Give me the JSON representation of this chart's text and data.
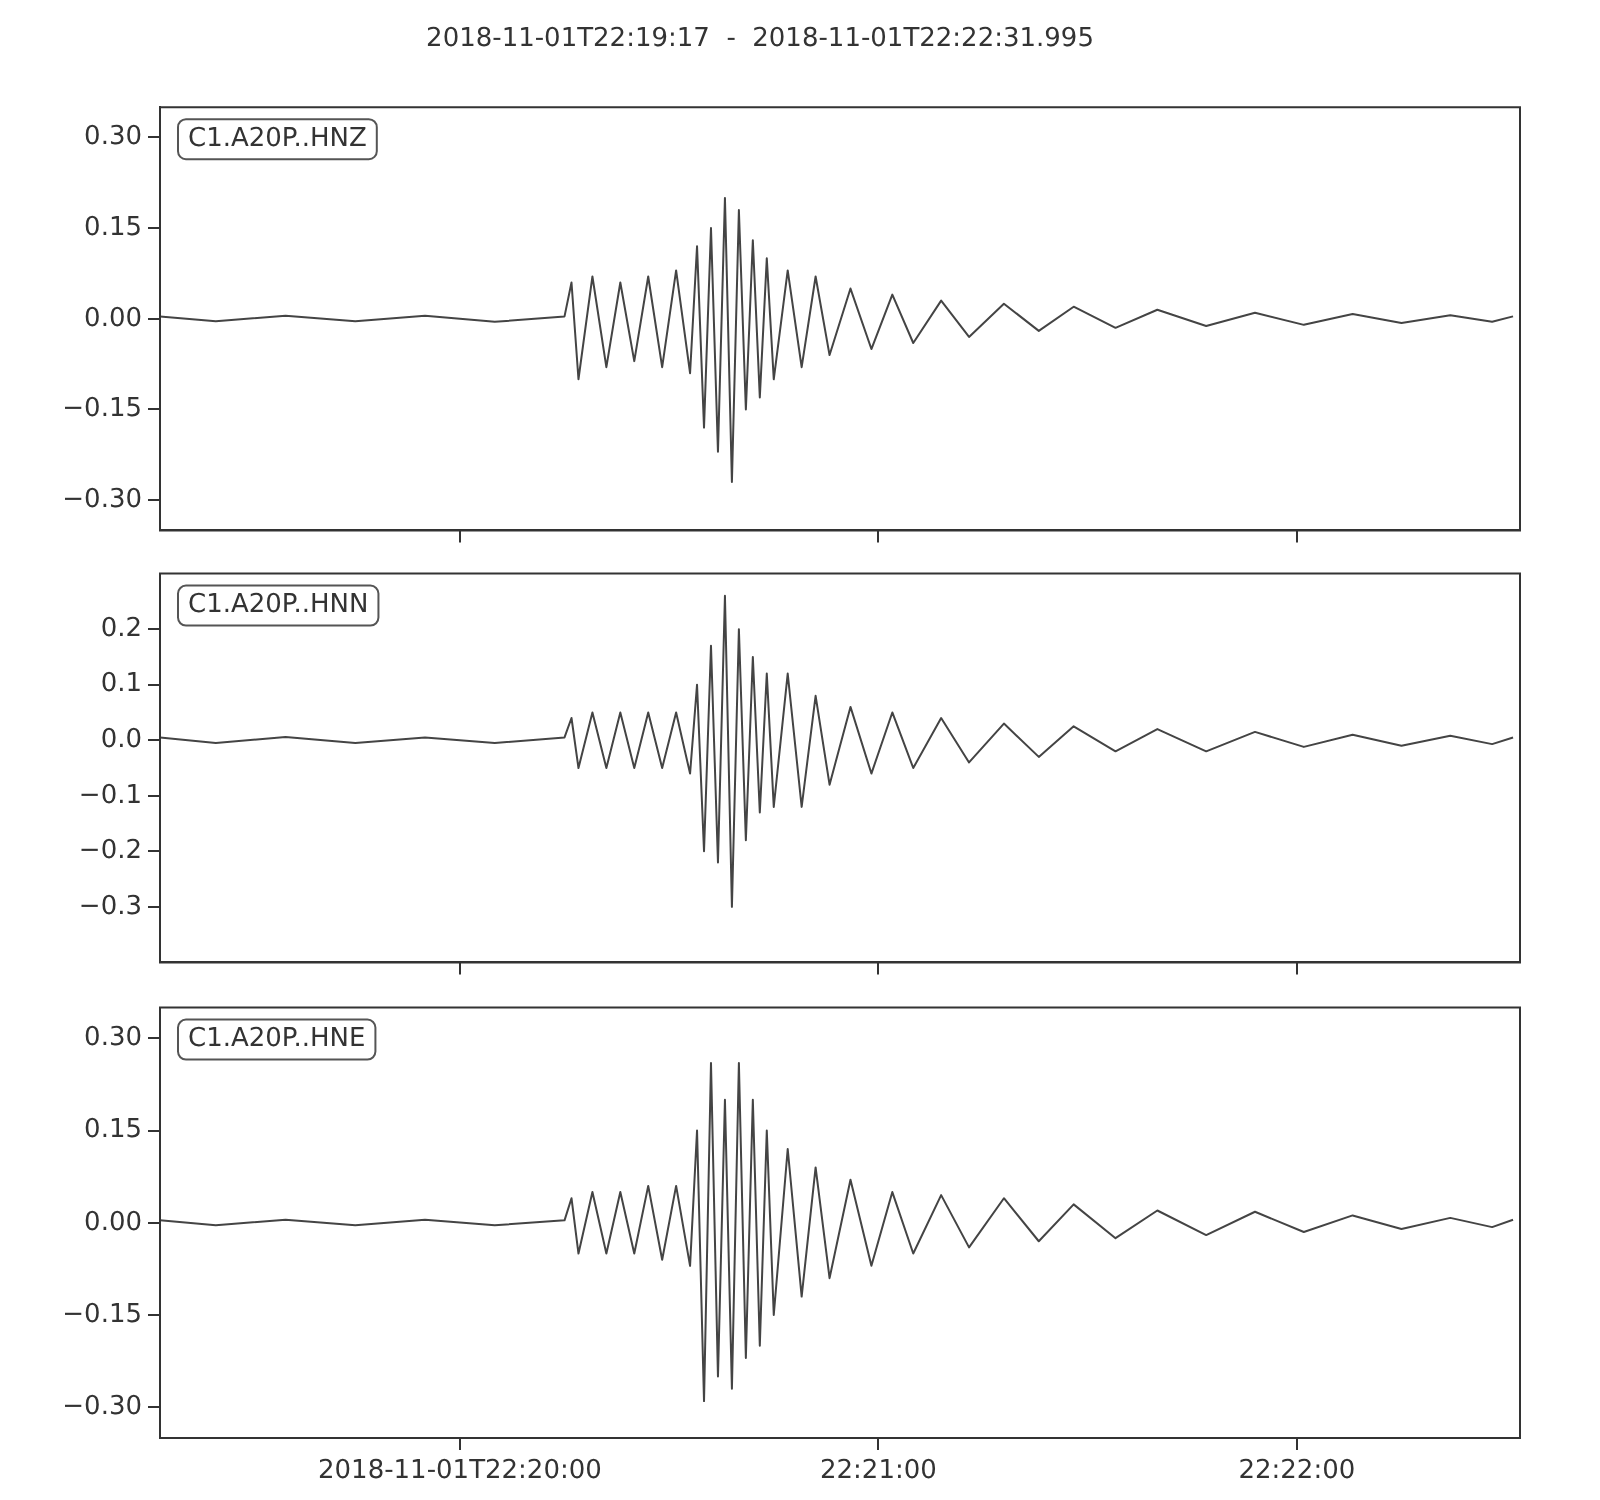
{
  "chart_data": [
    {
      "type": "line",
      "title": "2018-11-01T22:19:17  -  2018-11-01T22:22:31.995",
      "annotations": [
        "C1.A20P..HNZ"
      ],
      "xlim": [
        "2018-11-01T22:19:17",
        "2018-11-01T22:22:31.995"
      ],
      "xticks": [
        {
          "value": "2018-11-01T22:20:00",
          "label": null
        },
        {
          "value": "2018-11-01T22:21:00",
          "label": null
        },
        {
          "value": "2018-11-01T22:22:00",
          "label": null
        }
      ],
      "ylim": [
        -0.35,
        0.35
      ],
      "yticks": [
        {
          "value": -0.3,
          "label": "−0.30"
        },
        {
          "value": -0.15,
          "label": "−0.15"
        },
        {
          "value": 0,
          "label": "0.00"
        },
        {
          "value": 0.15,
          "label": "0.15"
        },
        {
          "value": 0.3,
          "label": "0.30"
        }
      ],
      "tick_labels": "y",
      "grid": false,
      "legend": false,
      "marker": "none",
      "line_style": "solid",
      "series": [
        {
          "color": "#444444",
          "x": [
            "2018-11-01T22:19:17",
            "2018-11-01T22:19:25",
            "2018-11-01T22:19:35",
            "2018-11-01T22:19:45",
            "2018-11-01T22:19:55",
            "2018-11-01T22:20:05",
            "2018-11-01T22:20:15",
            "2018-11-01T22:20:16",
            "2018-11-01T22:20:17",
            "2018-11-01T22:20:19",
            "2018-11-01T22:20:21",
            "2018-11-01T22:20:23",
            "2018-11-01T22:20:25",
            "2018-11-01T22:20:27",
            "2018-11-01T22:20:29",
            "2018-11-01T22:20:31",
            "2018-11-01T22:20:33",
            "2018-11-01T22:20:34",
            "2018-11-01T22:20:35",
            "2018-11-01T22:20:36",
            "2018-11-01T22:20:37",
            "2018-11-01T22:20:38",
            "2018-11-01T22:20:39",
            "2018-11-01T22:20:40",
            "2018-11-01T22:20:41",
            "2018-11-01T22:20:42",
            "2018-11-01T22:20:43",
            "2018-11-01T22:20:44",
            "2018-11-01T22:20:45",
            "2018-11-01T22:20:47",
            "2018-11-01T22:20:49",
            "2018-11-01T22:20:51",
            "2018-11-01T22:20:53",
            "2018-11-01T22:20:56",
            "2018-11-01T22:20:59",
            "2018-11-01T22:21:02",
            "2018-11-01T22:21:05",
            "2018-11-01T22:21:09",
            "2018-11-01T22:21:13",
            "2018-11-01T22:21:18",
            "2018-11-01T22:21:23",
            "2018-11-01T22:21:28",
            "2018-11-01T22:21:34",
            "2018-11-01T22:21:40",
            "2018-11-01T22:21:47",
            "2018-11-01T22:21:54",
            "2018-11-01T22:22:01",
            "2018-11-01T22:22:08",
            "2018-11-01T22:22:15",
            "2018-11-01T22:22:22",
            "2018-11-01T22:22:28",
            "2018-11-01T22:22:31"
          ],
          "values": [
            0.004,
            -0.004,
            0.005,
            -0.004,
            0.005,
            -0.005,
            0.004,
            0.06,
            -0.1,
            0.07,
            -0.08,
            0.06,
            -0.07,
            0.07,
            -0.08,
            0.08,
            -0.09,
            0.12,
            -0.18,
            0.15,
            -0.22,
            0.2,
            -0.27,
            0.18,
            -0.15,
            0.13,
            -0.13,
            0.1,
            -0.1,
            0.08,
            -0.08,
            0.07,
            -0.06,
            0.05,
            -0.05,
            0.04,
            -0.04,
            0.03,
            -0.03,
            0.025,
            -0.02,
            0.02,
            -0.015,
            0.015,
            -0.012,
            0.01,
            -0.01,
            0.008,
            -0.007,
            0.006,
            -0.005,
            0.004
          ]
        }
      ]
    },
    {
      "type": "line",
      "annotations": [
        "C1.A20P..HNN"
      ],
      "xlim": [
        "2018-11-01T22:19:17",
        "2018-11-01T22:22:31.995"
      ],
      "xticks": [
        {
          "value": "2018-11-01T22:20:00",
          "label": null
        },
        {
          "value": "2018-11-01T22:21:00",
          "label": null
        },
        {
          "value": "2018-11-01T22:22:00",
          "label": null
        }
      ],
      "ylim": [
        -0.4,
        0.3
      ],
      "yticks": [
        {
          "value": -0.3,
          "label": "−0.3"
        },
        {
          "value": -0.2,
          "label": "−0.2"
        },
        {
          "value": -0.1,
          "label": "−0.1"
        },
        {
          "value": 0,
          "label": "0.0"
        },
        {
          "value": 0.1,
          "label": "0.1"
        },
        {
          "value": 0.2,
          "label": "0.2"
        }
      ],
      "tick_labels": "y",
      "grid": false,
      "legend": false,
      "marker": "none",
      "line_style": "solid",
      "series": [
        {
          "color": "#444444",
          "x": [
            "2018-11-01T22:19:17",
            "2018-11-01T22:19:25",
            "2018-11-01T22:19:35",
            "2018-11-01T22:19:45",
            "2018-11-01T22:19:55",
            "2018-11-01T22:20:05",
            "2018-11-01T22:20:15",
            "2018-11-01T22:20:16",
            "2018-11-01T22:20:17",
            "2018-11-01T22:20:19",
            "2018-11-01T22:20:21",
            "2018-11-01T22:20:23",
            "2018-11-01T22:20:25",
            "2018-11-01T22:20:27",
            "2018-11-01T22:20:29",
            "2018-11-01T22:20:31",
            "2018-11-01T22:20:33",
            "2018-11-01T22:20:34",
            "2018-11-01T22:20:35",
            "2018-11-01T22:20:36",
            "2018-11-01T22:20:37",
            "2018-11-01T22:20:38",
            "2018-11-01T22:20:39",
            "2018-11-01T22:20:40",
            "2018-11-01T22:20:41",
            "2018-11-01T22:20:42",
            "2018-11-01T22:20:43",
            "2018-11-01T22:20:44",
            "2018-11-01T22:20:45",
            "2018-11-01T22:20:47",
            "2018-11-01T22:20:49",
            "2018-11-01T22:20:51",
            "2018-11-01T22:20:53",
            "2018-11-01T22:20:56",
            "2018-11-01T22:20:59",
            "2018-11-01T22:21:02",
            "2018-11-01T22:21:05",
            "2018-11-01T22:21:09",
            "2018-11-01T22:21:13",
            "2018-11-01T22:21:18",
            "2018-11-01T22:21:23",
            "2018-11-01T22:21:28",
            "2018-11-01T22:21:34",
            "2018-11-01T22:21:40",
            "2018-11-01T22:21:47",
            "2018-11-01T22:21:54",
            "2018-11-01T22:22:01",
            "2018-11-01T22:22:08",
            "2018-11-01T22:22:15",
            "2018-11-01T22:22:22",
            "2018-11-01T22:22:28",
            "2018-11-01T22:22:31"
          ],
          "values": [
            0.005,
            -0.005,
            0.006,
            -0.005,
            0.005,
            -0.005,
            0.005,
            0.04,
            -0.05,
            0.05,
            -0.05,
            0.05,
            -0.05,
            0.05,
            -0.05,
            0.05,
            -0.06,
            0.1,
            -0.2,
            0.17,
            -0.22,
            0.26,
            -0.3,
            0.2,
            -0.18,
            0.15,
            -0.13,
            0.12,
            -0.12,
            0.12,
            -0.12,
            0.08,
            -0.08,
            0.06,
            -0.06,
            0.05,
            -0.05,
            0.04,
            -0.04,
            0.03,
            -0.03,
            0.025,
            -0.02,
            0.02,
            -0.02,
            0.015,
            -0.012,
            0.01,
            -0.01,
            0.008,
            -0.007,
            0.005
          ]
        }
      ]
    },
    {
      "type": "line",
      "annotations": [
        "C1.A20P..HNE"
      ],
      "xlim": [
        "2018-11-01T22:19:17",
        "2018-11-01T22:22:31.995"
      ],
      "xticks": [
        {
          "value": "2018-11-01T22:20:00",
          "label": "2018-11-01T22:20:00"
        },
        {
          "value": "2018-11-01T22:21:00",
          "label": "22:21:00"
        },
        {
          "value": "2018-11-01T22:22:00",
          "label": "22:22:00"
        }
      ],
      "ylim": [
        -0.35,
        0.35
      ],
      "yticks": [
        {
          "value": -0.3,
          "label": "−0.30"
        },
        {
          "value": -0.15,
          "label": "−0.15"
        },
        {
          "value": 0,
          "label": "0.00"
        },
        {
          "value": 0.15,
          "label": "0.15"
        },
        {
          "value": 0.3,
          "label": "0.30"
        }
      ],
      "grid": false,
      "legend": false,
      "marker": "none",
      "line_style": "solid",
      "series": [
        {
          "color": "#444444",
          "x": [
            "2018-11-01T22:19:17",
            "2018-11-01T22:19:25",
            "2018-11-01T22:19:35",
            "2018-11-01T22:19:45",
            "2018-11-01T22:19:55",
            "2018-11-01T22:20:05",
            "2018-11-01T22:20:15",
            "2018-11-01T22:20:16",
            "2018-11-01T22:20:17",
            "2018-11-01T22:20:19",
            "2018-11-01T22:20:21",
            "2018-11-01T22:20:23",
            "2018-11-01T22:20:25",
            "2018-11-01T22:20:27",
            "2018-11-01T22:20:29",
            "2018-11-01T22:20:31",
            "2018-11-01T22:20:33",
            "2018-11-01T22:20:34",
            "2018-11-01T22:20:35",
            "2018-11-01T22:20:36",
            "2018-11-01T22:20:37",
            "2018-11-01T22:20:38",
            "2018-11-01T22:20:39",
            "2018-11-01T22:20:40",
            "2018-11-01T22:20:41",
            "2018-11-01T22:20:42",
            "2018-11-01T22:20:43",
            "2018-11-01T22:20:44",
            "2018-11-01T22:20:45",
            "2018-11-01T22:20:47",
            "2018-11-01T22:20:49",
            "2018-11-01T22:20:51",
            "2018-11-01T22:20:53",
            "2018-11-01T22:20:56",
            "2018-11-01T22:20:59",
            "2018-11-01T22:21:02",
            "2018-11-01T22:21:05",
            "2018-11-01T22:21:09",
            "2018-11-01T22:21:13",
            "2018-11-01T22:21:18",
            "2018-11-01T22:21:23",
            "2018-11-01T22:21:28",
            "2018-11-01T22:21:34",
            "2018-11-01T22:21:40",
            "2018-11-01T22:21:47",
            "2018-11-01T22:21:54",
            "2018-11-01T22:22:01",
            "2018-11-01T22:22:08",
            "2018-11-01T22:22:15",
            "2018-11-01T22:22:22",
            "2018-11-01T22:22:28",
            "2018-11-01T22:22:31"
          ],
          "values": [
            0.004,
            -0.004,
            0.005,
            -0.004,
            0.005,
            -0.004,
            0.004,
            0.04,
            -0.05,
            0.05,
            -0.05,
            0.05,
            -0.05,
            0.06,
            -0.06,
            0.06,
            -0.07,
            0.15,
            -0.29,
            0.26,
            -0.25,
            0.2,
            -0.27,
            0.26,
            -0.22,
            0.2,
            -0.2,
            0.15,
            -0.15,
            0.12,
            -0.12,
            0.09,
            -0.09,
            0.07,
            -0.07,
            0.05,
            -0.05,
            0.045,
            -0.04,
            0.04,
            -0.03,
            0.03,
            -0.025,
            0.02,
            -0.02,
            0.018,
            -0.015,
            0.012,
            -0.01,
            0.008,
            -0.007,
            0.005
          ]
        }
      ]
    }
  ]
}
